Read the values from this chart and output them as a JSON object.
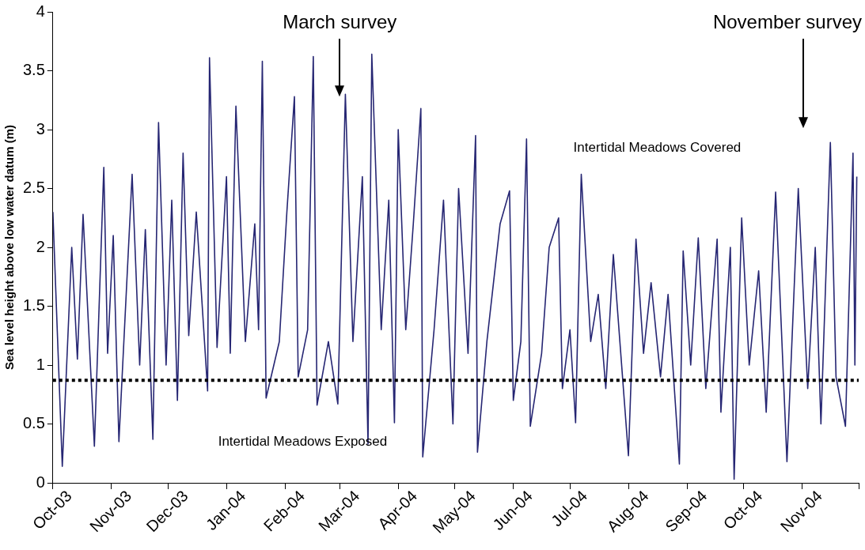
{
  "chart_data": {
    "type": "line",
    "ylabel": "Sea level height above low water datum (m)",
    "xlim": [
      "2003-10-01",
      "2004-12-01"
    ],
    "xticks": [
      {
        "value": "2003-10-01",
        "label": "Oct-03"
      },
      {
        "value": "2003-11-01",
        "label": "Nov-03"
      },
      {
        "value": "2003-12-01",
        "label": "Dec-03"
      },
      {
        "value": "2004-01-01",
        "label": "Jan-04"
      },
      {
        "value": "2004-02-01",
        "label": "Feb-04"
      },
      {
        "value": "2004-03-01",
        "label": "Mar-04"
      },
      {
        "value": "2004-04-01",
        "label": "Apr-04"
      },
      {
        "value": "2004-05-01",
        "label": "May-04"
      },
      {
        "value": "2004-06-01",
        "label": "Jun-04"
      },
      {
        "value": "2004-07-01",
        "label": "Jul-04"
      },
      {
        "value": "2004-08-01",
        "label": "Aug-04"
      },
      {
        "value": "2004-09-01",
        "label": "Sep-04"
      },
      {
        "value": "2004-10-01",
        "label": "Oct-04"
      },
      {
        "value": "2004-11-01",
        "label": "Nov-04"
      },
      {
        "value": "2004-12-01",
        "label": null
      }
    ],
    "ylim": [
      0,
      4
    ],
    "yticks": [
      0,
      0.5,
      1,
      1.5,
      2,
      2.5,
      3,
      3.5,
      4
    ],
    "grid": false,
    "legend": false,
    "marker": "none",
    "series": [
      {
        "color": "#262673",
        "x": [
          "2003-10-01",
          "2003-10-06",
          "2003-10-11",
          "2003-10-14",
          "2003-10-17",
          "2003-10-23",
          "2003-10-28",
          "2003-10-30",
          "2003-11-02",
          "2003-11-05",
          "2003-11-12",
          "2003-11-16",
          "2003-11-19",
          "2003-11-23",
          "2003-11-26",
          "2003-11-30",
          "2003-12-03",
          "2003-12-06",
          "2003-12-09",
          "2003-12-12",
          "2003-12-16",
          "2003-12-22",
          "2003-12-23",
          "2003-12-27",
          "2004-01-01",
          "2004-01-03",
          "2004-01-06",
          "2004-01-11",
          "2004-01-16",
          "2004-01-18",
          "2004-01-20",
          "2004-01-22",
          "2004-01-29",
          "2004-02-02",
          "2004-02-06",
          "2004-02-08",
          "2004-02-13",
          "2004-02-16",
          "2004-02-18",
          "2004-02-24",
          "2004-02-29",
          "2004-03-04",
          "2004-03-08",
          "2004-03-13",
          "2004-03-16",
          "2004-03-18",
          "2004-03-23",
          "2004-03-27",
          "2004-03-30",
          "2004-04-01",
          "2004-04-05",
          "2004-04-09",
          "2004-04-13",
          "2004-04-14",
          "2004-04-20",
          "2004-04-25",
          "2004-04-30",
          "2004-05-03",
          "2004-05-08",
          "2004-05-12",
          "2004-05-13",
          "2004-05-18",
          "2004-05-25",
          "2004-05-30",
          "2004-06-01",
          "2004-06-05",
          "2004-06-08",
          "2004-06-10",
          "2004-06-16",
          "2004-06-20",
          "2004-06-25",
          "2004-06-27",
          "2004-07-01",
          "2004-07-04",
          "2004-07-07",
          "2004-07-12",
          "2004-07-16",
          "2004-07-20",
          "2004-07-24",
          "2004-08-01",
          "2004-08-05",
          "2004-08-09",
          "2004-08-13",
          "2004-08-18",
          "2004-08-22",
          "2004-08-28",
          "2004-08-30",
          "2004-09-03",
          "2004-09-07",
          "2004-09-11",
          "2004-09-17",
          "2004-09-19",
          "2004-09-24",
          "2004-09-26",
          "2004-09-30",
          "2004-10-04",
          "2004-10-09",
          "2004-10-13",
          "2004-10-18",
          "2004-10-24",
          "2004-10-30",
          "2004-11-04",
          "2004-11-08",
          "2004-11-11",
          "2004-11-16",
          "2004-11-19",
          "2004-11-24",
          "2004-11-28",
          "2004-11-29",
          "2004-11-30"
        ],
        "values": [
          2.3,
          0.14,
          2.0,
          1.05,
          2.28,
          0.31,
          2.68,
          1.1,
          2.1,
          0.35,
          2.62,
          1.0,
          2.15,
          0.37,
          3.06,
          1.0,
          2.4,
          0.7,
          2.8,
          1.25,
          2.3,
          0.78,
          3.61,
          1.15,
          2.6,
          1.1,
          3.2,
          1.2,
          2.2,
          1.3,
          3.58,
          0.72,
          1.2,
          2.3,
          3.28,
          0.9,
          1.3,
          3.62,
          0.66,
          1.2,
          0.67,
          3.3,
          1.2,
          2.6,
          0.33,
          3.64,
          1.3,
          2.4,
          0.51,
          3.0,
          1.3,
          2.2,
          3.18,
          0.22,
          1.3,
          2.4,
          0.5,
          2.5,
          1.1,
          2.95,
          0.26,
          1.2,
          2.2,
          2.48,
          0.7,
          1.2,
          2.92,
          0.48,
          1.1,
          2.0,
          2.25,
          0.8,
          1.3,
          0.51,
          2.62,
          1.2,
          1.6,
          0.8,
          1.94,
          0.23,
          2.07,
          1.1,
          1.7,
          0.9,
          1.6,
          0.16,
          1.97,
          1.0,
          2.08,
          0.8,
          2.07,
          0.6,
          2.0,
          0.03,
          2.25,
          1.0,
          1.8,
          0.6,
          2.47,
          0.18,
          2.5,
          0.8,
          2.0,
          0.5,
          2.89,
          0.9,
          0.48,
          2.8,
          1.0,
          2.6
        ]
      }
    ],
    "ref_lines": [
      {
        "axis": "y",
        "value": 0.87,
        "color": "#000000",
        "line_style": "dotted"
      }
    ],
    "annotations": [
      "March survey",
      "November survey",
      "Intertidal Meadows Covered",
      "Intertidal Meadows Exposed"
    ]
  }
}
